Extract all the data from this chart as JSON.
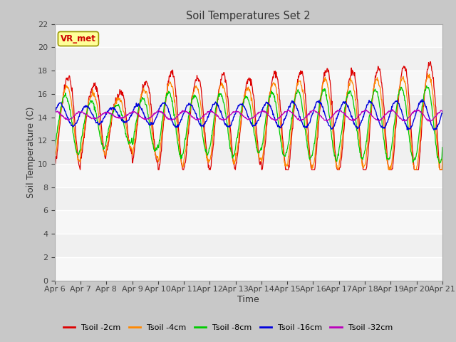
{
  "title": "Soil Temperatures Set 2",
  "xlabel": "Time",
  "ylabel": "Soil Temperature (C)",
  "ylim": [
    0,
    22
  ],
  "yticks": [
    0,
    2,
    4,
    6,
    8,
    10,
    12,
    14,
    16,
    18,
    20,
    22
  ],
  "xtick_labels": [
    "Apr 6",
    "Apr 7",
    "Apr 8",
    "Apr 9",
    "Apr 10",
    "Apr 11",
    "Apr 12",
    "Apr 13",
    "Apr 14",
    "Apr 15",
    "Apr 16",
    "Apr 17",
    "Apr 18",
    "Apr 19",
    "Apr 20",
    "Apr 21"
  ],
  "series_colors": [
    "#dd0000",
    "#ff8800",
    "#00cc00",
    "#0000dd",
    "#bb00bb"
  ],
  "series_labels": [
    "Tsoil -2cm",
    "Tsoil -4cm",
    "Tsoil -8cm",
    "Tsoil -16cm",
    "Tsoil -32cm"
  ],
  "plot_bg_color": "#f0f0f0",
  "fig_bg_color": "#c8c8c8",
  "annotation_text": "VR_met",
  "annotation_color": "#cc0000",
  "annotation_bg": "#ffff99",
  "n_points": 960
}
